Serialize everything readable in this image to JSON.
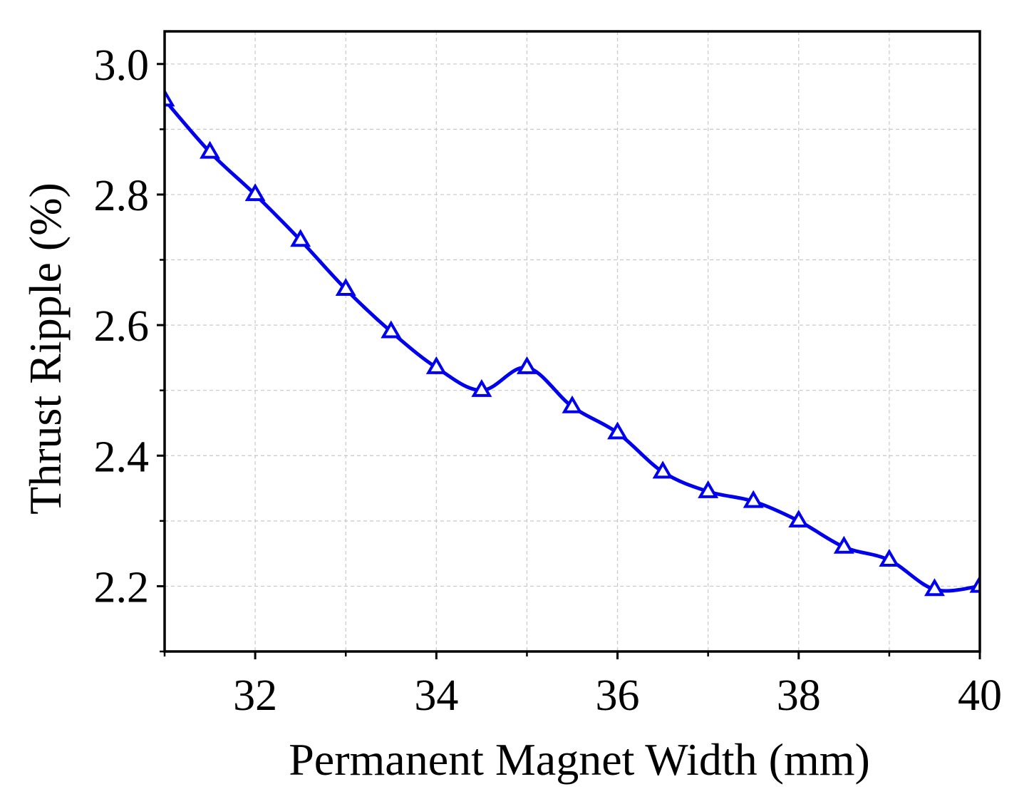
{
  "chart_data": {
    "type": "line",
    "title": "",
    "xlabel": "Permanent Magnet Width (mm)",
    "ylabel": "Thrust Ripple (%)",
    "xlim": [
      31,
      40
    ],
    "ylim": [
      2.1,
      3.05
    ],
    "xticks": [
      32,
      34,
      36,
      38,
      40
    ],
    "yticks": [
      2.2,
      2.4,
      2.6,
      2.8,
      3.0
    ],
    "xtick_labels": [
      "32",
      "34",
      "36",
      "38",
      "40"
    ],
    "ytick_labels": [
      "2.2",
      "2.4",
      "2.6",
      "2.8",
      "3.0"
    ],
    "grid": true,
    "legend": "none",
    "series": [
      {
        "color": "#0000ee",
        "marker": "open-triangle",
        "x": [
          31,
          31.5,
          32,
          32.5,
          33,
          33.5,
          34,
          34.5,
          35,
          35.5,
          36,
          36.5,
          37,
          37.5,
          38,
          38.5,
          39,
          39.5,
          40
        ],
        "y": [
          2.945,
          2.865,
          2.8,
          2.73,
          2.655,
          2.59,
          2.535,
          2.5,
          2.535,
          2.475,
          2.435,
          2.375,
          2.345,
          2.33,
          2.3,
          2.26,
          2.24,
          2.195,
          2.2
        ]
      }
    ]
  }
}
